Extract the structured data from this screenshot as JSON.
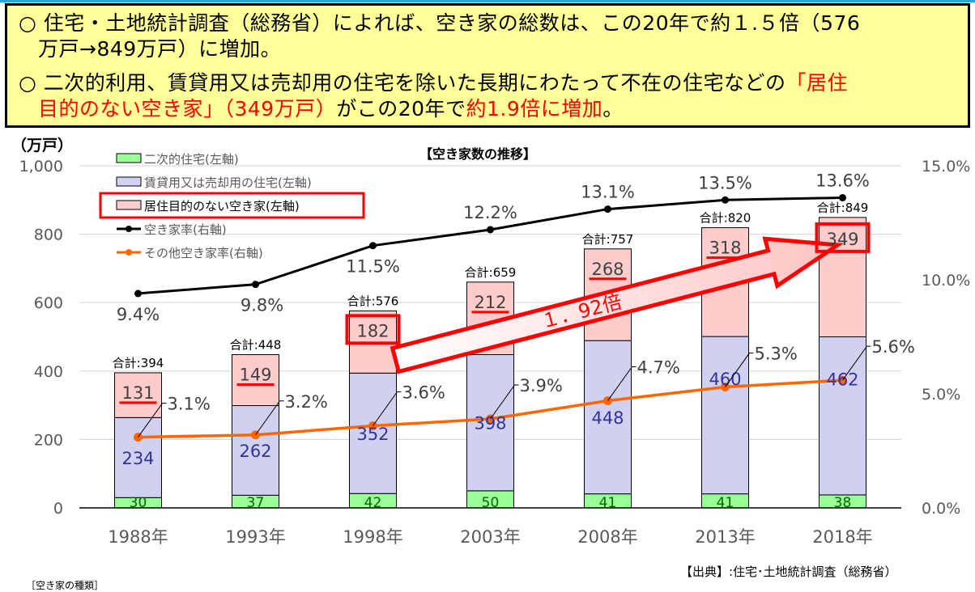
{
  "notes": {
    "line1": {
      "bullet": "○",
      "text_a": "住宅・土地統計調査（総務省）によれば、空き家の総数は、この20年で約１.５倍（576",
      "text_b": "万戸→849万戸）に増加。"
    },
    "line2": {
      "bullet": "○",
      "text_a": "二次的利用、賃貸用又は売却用の住宅を除いた長期にわたって不在の住宅などの",
      "text_a_red": "「居住",
      "text_b_red1": "目的のない空き家」（349万戸）",
      "text_b_mid": "がこの20年で",
      "text_b_red2": "約1.9倍に増加",
      "text_b_end": "。"
    }
  },
  "chart_data": {
    "type": "bar",
    "title": "【空き家数の推移】",
    "ylabel": "（万戸）",
    "categories": [
      "1988年",
      "1993年",
      "1998年",
      "2003年",
      "2008年",
      "2013年",
      "2018年"
    ],
    "ylim": [
      0,
      1000
    ],
    "yticks": [
      "0",
      "200",
      "400",
      "600",
      "800",
      "1,000"
    ],
    "y2lim": [
      0,
      15
    ],
    "y2ticks": [
      "0.0%",
      "5.0%",
      "10.0%",
      "15.0%"
    ],
    "grid": true,
    "legend_position": "top-left",
    "series": [
      {
        "name": "二次的住宅(左軸)",
        "kind": "bar",
        "color": "#99ff99",
        "label_color": "#006600",
        "values": [
          30,
          37,
          42,
          50,
          41,
          41,
          38
        ]
      },
      {
        "name": "賃貸用又は売却用の住宅(左軸)",
        "kind": "bar",
        "color": "#d0d0f0",
        "label_color": "#333399",
        "values": [
          234,
          262,
          352,
          398,
          448,
          460,
          462
        ]
      },
      {
        "name": "居住目的のない空き家(左軸)",
        "kind": "bar",
        "color": "#ffcccc",
        "label_color": "#404040",
        "values": [
          131,
          149,
          182,
          212,
          268,
          318,
          349
        ]
      },
      {
        "name": "空き家率(右軸)",
        "kind": "line",
        "color": "#000000",
        "values": [
          9.4,
          9.8,
          11.5,
          12.2,
          13.1,
          13.5,
          13.6
        ],
        "labels": [
          "9.4%",
          "9.8%",
          "11.5%",
          "12.2%",
          "13.1%",
          "13.5%",
          "13.6%"
        ]
      },
      {
        "name": "その他空き家率(右軸)",
        "kind": "line",
        "color": "#ff6600",
        "values": [
          3.1,
          3.2,
          3.6,
          3.9,
          4.7,
          5.3,
          5.6
        ],
        "labels": [
          "3.1%",
          "3.2%",
          "3.6%",
          "3.9%",
          "4.7%",
          "5.3%",
          "5.6%"
        ]
      }
    ],
    "totals": [
      "合計:394",
      "合計:448",
      "合計:576",
      "合計:659",
      "合計:757",
      "合計:820",
      "合計:849"
    ],
    "annotation": {
      "text": "１．92倍",
      "from": "1998年",
      "to": "2018年",
      "color": "#ff0000"
    },
    "highlight_color": "#ff0000"
  },
  "footer": {
    "source": "【出典】:住宅･土地統計調査（総務省）",
    "types_heading": "［空き家の種類］"
  }
}
